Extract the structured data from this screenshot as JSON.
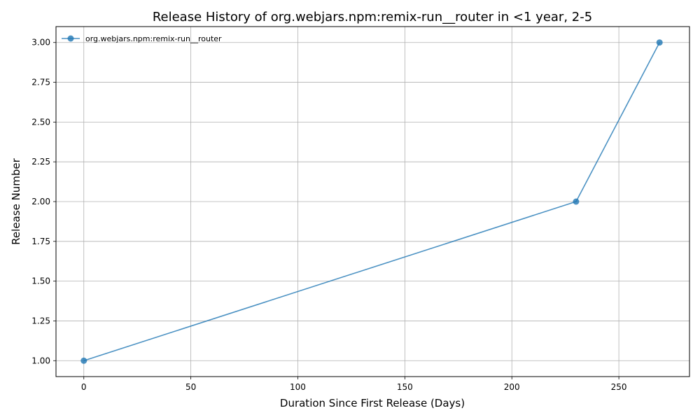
{
  "chart_data": {
    "type": "line",
    "title": "Release History of org.webjars.npm:remix-run__router in <1 year, 2-5",
    "xlabel": "Duration Since First Release (Days)",
    "ylabel": "Release Number",
    "xlim": [
      -13,
      283
    ],
    "ylim": [
      0.9,
      3.1
    ],
    "xticks": [
      0,
      50,
      100,
      150,
      200,
      250
    ],
    "yticks": [
      1.0,
      1.25,
      1.5,
      1.75,
      2.0,
      2.25,
      2.5,
      2.75,
      3.0
    ],
    "ytick_labels": [
      "1.00",
      "1.25",
      "1.50",
      "1.75",
      "2.00",
      "2.25",
      "2.50",
      "2.75",
      "3.00"
    ],
    "grid": true,
    "legend_position": "top-left",
    "series": [
      {
        "name": "org.webjars.npm:remix-run__router",
        "color": "#1f77b4",
        "marker": "circle",
        "x": [
          0,
          230,
          269
        ],
        "y": [
          1,
          2,
          3
        ]
      }
    ]
  }
}
